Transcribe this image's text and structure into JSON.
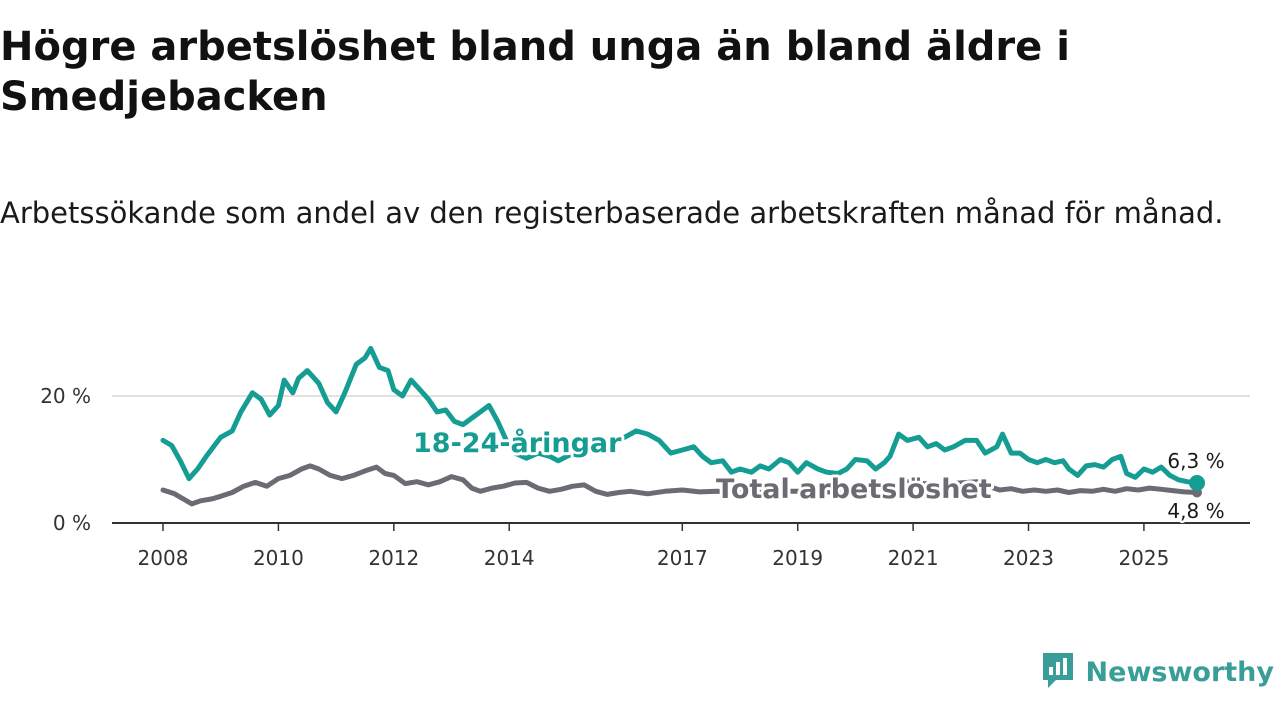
{
  "title": "Högre arbetslöshet bland unga än bland äldre i Smedjebacken",
  "subtitle": "Arbetssökande som andel av den registerbaserade arbetskraften månad för månad.",
  "brand": {
    "name": "Newsworthy",
    "color": "#3a9e98"
  },
  "chart_data": {
    "type": "line",
    "title": "Högre arbetslöshet bland unga än bland äldre i Smedjebacken",
    "xlabel": "",
    "ylabel": "",
    "xlim": [
      2008.0,
      2025.92
    ],
    "ylim": [
      0,
      28
    ],
    "yticks": [
      0,
      20
    ],
    "ytick_labels": [
      "0 %",
      "20 %"
    ],
    "xticks": [
      2008,
      2010,
      2012,
      2014,
      2017,
      2019,
      2021,
      2023,
      2025
    ],
    "grid": "horizontal",
    "series": [
      {
        "name": "18-24-åringar",
        "color": "#159d93",
        "label": "18-24-åringar",
        "end_label": "6,3 %",
        "points": [
          [
            2008.0,
            13.0
          ],
          [
            2008.15,
            12.2
          ],
          [
            2008.3,
            9.8
          ],
          [
            2008.45,
            7.0
          ],
          [
            2008.6,
            8.5
          ],
          [
            2008.75,
            10.5
          ],
          [
            2009.0,
            13.5
          ],
          [
            2009.2,
            14.5
          ],
          [
            2009.35,
            17.5
          ],
          [
            2009.55,
            20.5
          ],
          [
            2009.7,
            19.5
          ],
          [
            2009.85,
            17.0
          ],
          [
            2010.0,
            18.5
          ],
          [
            2010.1,
            22.5
          ],
          [
            2010.25,
            20.5
          ],
          [
            2010.35,
            22.8
          ],
          [
            2010.5,
            24.0
          ],
          [
            2010.7,
            22.0
          ],
          [
            2010.85,
            19.0
          ],
          [
            2011.0,
            17.5
          ],
          [
            2011.15,
            20.5
          ],
          [
            2011.35,
            25.0
          ],
          [
            2011.5,
            26.0
          ],
          [
            2011.6,
            27.5
          ],
          [
            2011.75,
            24.5
          ],
          [
            2011.9,
            24.0
          ],
          [
            2012.0,
            21.0
          ],
          [
            2012.15,
            20.0
          ],
          [
            2012.3,
            22.5
          ],
          [
            2012.45,
            21.0
          ],
          [
            2012.6,
            19.5
          ],
          [
            2012.75,
            17.5
          ],
          [
            2012.9,
            17.8
          ],
          [
            2013.05,
            16.0
          ],
          [
            2013.2,
            15.5
          ],
          [
            2013.35,
            16.5
          ],
          [
            2013.5,
            17.5
          ],
          [
            2013.65,
            18.5
          ],
          [
            2013.8,
            16.0
          ],
          [
            2013.95,
            13.0
          ],
          [
            2014.1,
            11.0
          ],
          [
            2014.3,
            10.2
          ],
          [
            2014.5,
            11.0
          ],
          [
            2014.7,
            10.5
          ],
          [
            2014.85,
            9.8
          ],
          [
            2015.0,
            10.5
          ],
          [
            2015.3,
            11.5
          ],
          [
            2015.6,
            12.5
          ],
          [
            2016.0,
            13.5
          ],
          [
            2016.2,
            14.5
          ],
          [
            2016.4,
            14.0
          ],
          [
            2016.6,
            13.0
          ],
          [
            2016.8,
            11.0
          ],
          [
            2017.0,
            11.5
          ],
          [
            2017.2,
            12.0
          ],
          [
            2017.35,
            10.5
          ],
          [
            2017.5,
            9.5
          ],
          [
            2017.7,
            9.8
          ],
          [
            2017.85,
            8.0
          ],
          [
            2018.0,
            8.5
          ],
          [
            2018.2,
            8.0
          ],
          [
            2018.35,
            9.0
          ],
          [
            2018.5,
            8.5
          ],
          [
            2018.7,
            10.0
          ],
          [
            2018.85,
            9.5
          ],
          [
            2019.0,
            8.0
          ],
          [
            2019.15,
            9.5
          ],
          [
            2019.35,
            8.5
          ],
          [
            2019.5,
            8.0
          ],
          [
            2019.7,
            7.8
          ],
          [
            2019.85,
            8.5
          ],
          [
            2020.0,
            10.0
          ],
          [
            2020.2,
            9.8
          ],
          [
            2020.35,
            8.5
          ],
          [
            2020.5,
            9.5
          ],
          [
            2020.6,
            10.5
          ],
          [
            2020.75,
            14.0
          ],
          [
            2020.9,
            13.0
          ],
          [
            2021.1,
            13.5
          ],
          [
            2021.25,
            12.0
          ],
          [
            2021.4,
            12.5
          ],
          [
            2021.55,
            11.5
          ],
          [
            2021.7,
            12.0
          ],
          [
            2021.9,
            13.0
          ],
          [
            2022.1,
            13.0
          ],
          [
            2022.25,
            11.0
          ],
          [
            2022.45,
            12.0
          ],
          [
            2022.55,
            14.0
          ],
          [
            2022.7,
            11.0
          ],
          [
            2022.85,
            11.0
          ],
          [
            2023.0,
            10.0
          ],
          [
            2023.15,
            9.5
          ],
          [
            2023.3,
            10.0
          ],
          [
            2023.45,
            9.5
          ],
          [
            2023.6,
            9.8
          ],
          [
            2023.7,
            8.5
          ],
          [
            2023.85,
            7.5
          ],
          [
            2024.0,
            9.0
          ],
          [
            2024.15,
            9.2
          ],
          [
            2024.3,
            8.8
          ],
          [
            2024.45,
            10.0
          ],
          [
            2024.6,
            10.5
          ],
          [
            2024.7,
            7.8
          ],
          [
            2024.85,
            7.2
          ],
          [
            2025.0,
            8.5
          ],
          [
            2025.15,
            8.0
          ],
          [
            2025.3,
            8.8
          ],
          [
            2025.45,
            7.5
          ],
          [
            2025.6,
            6.8
          ],
          [
            2025.75,
            6.5
          ],
          [
            2025.92,
            6.3
          ]
        ]
      },
      {
        "name": "Total arbetslöshet",
        "color": "#6b6b74",
        "label": "Total arbetslöshet",
        "end_label": "4,8 %",
        "points": [
          [
            2008.0,
            5.2
          ],
          [
            2008.2,
            4.6
          ],
          [
            2008.35,
            3.8
          ],
          [
            2008.5,
            3.0
          ],
          [
            2008.65,
            3.5
          ],
          [
            2008.85,
            3.8
          ],
          [
            2009.0,
            4.2
          ],
          [
            2009.2,
            4.8
          ],
          [
            2009.4,
            5.8
          ],
          [
            2009.6,
            6.4
          ],
          [
            2009.8,
            5.8
          ],
          [
            2010.0,
            7.0
          ],
          [
            2010.2,
            7.5
          ],
          [
            2010.4,
            8.5
          ],
          [
            2010.55,
            9.0
          ],
          [
            2010.7,
            8.5
          ],
          [
            2010.9,
            7.5
          ],
          [
            2011.1,
            7.0
          ],
          [
            2011.3,
            7.5
          ],
          [
            2011.5,
            8.2
          ],
          [
            2011.7,
            8.8
          ],
          [
            2011.85,
            7.8
          ],
          [
            2012.0,
            7.5
          ],
          [
            2012.2,
            6.2
          ],
          [
            2012.4,
            6.5
          ],
          [
            2012.6,
            6.0
          ],
          [
            2012.8,
            6.5
          ],
          [
            2013.0,
            7.3
          ],
          [
            2013.2,
            6.8
          ],
          [
            2013.35,
            5.5
          ],
          [
            2013.5,
            5.0
          ],
          [
            2013.7,
            5.5
          ],
          [
            2013.9,
            5.8
          ],
          [
            2014.1,
            6.3
          ],
          [
            2014.3,
            6.4
          ],
          [
            2014.5,
            5.5
          ],
          [
            2014.7,
            5.0
          ],
          [
            2014.9,
            5.3
          ],
          [
            2015.1,
            5.8
          ],
          [
            2015.3,
            6.0
          ],
          [
            2015.5,
            5.0
          ],
          [
            2015.7,
            4.5
          ],
          [
            2015.9,
            4.8
          ],
          [
            2016.1,
            5.0
          ],
          [
            2016.4,
            4.6
          ],
          [
            2016.7,
            5.0
          ],
          [
            2017.0,
            5.2
          ],
          [
            2017.3,
            4.9
          ],
          [
            2017.6,
            5.0
          ],
          [
            2017.9,
            4.8
          ],
          [
            2018.2,
            5.0
          ],
          [
            2018.5,
            4.9
          ],
          [
            2018.8,
            5.0
          ],
          [
            2019.1,
            5.0
          ],
          [
            2019.4,
            4.8
          ],
          [
            2019.7,
            5.0
          ],
          [
            2020.0,
            5.2
          ],
          [
            2020.3,
            5.5
          ],
          [
            2020.6,
            6.0
          ],
          [
            2020.9,
            6.5
          ],
          [
            2021.2,
            6.2
          ],
          [
            2021.5,
            6.0
          ],
          [
            2021.8,
            6.3
          ],
          [
            2022.1,
            6.5
          ],
          [
            2022.3,
            5.8
          ],
          [
            2022.5,
            5.2
          ],
          [
            2022.7,
            5.4
          ],
          [
            2022.9,
            5.0
          ],
          [
            2023.1,
            5.2
          ],
          [
            2023.3,
            5.0
          ],
          [
            2023.5,
            5.2
          ],
          [
            2023.7,
            4.8
          ],
          [
            2023.9,
            5.1
          ],
          [
            2024.1,
            5.0
          ],
          [
            2024.3,
            5.3
          ],
          [
            2024.5,
            5.0
          ],
          [
            2024.7,
            5.4
          ],
          [
            2024.9,
            5.2
          ],
          [
            2025.1,
            5.5
          ],
          [
            2025.3,
            5.3
          ],
          [
            2025.5,
            5.1
          ],
          [
            2025.7,
            4.9
          ],
          [
            2025.92,
            4.8
          ]
        ]
      }
    ]
  }
}
